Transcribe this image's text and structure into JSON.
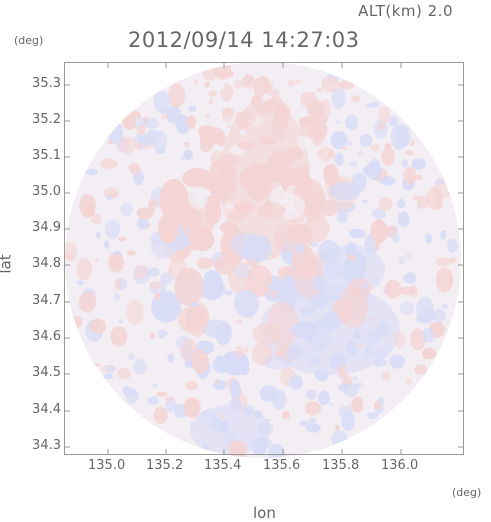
{
  "header": {
    "altitude": "ALT(km) 2.0",
    "timestamp": "2012/09/14 14:27:03"
  },
  "axes": {
    "y_unit": "(deg)",
    "x_unit": "(deg)",
    "y_title": "lat",
    "x_title": "lon",
    "y_ticks": [
      "35.3",
      "35.2",
      "35.1",
      "35.0",
      "34.9",
      "34.8",
      "34.7",
      "34.6",
      "34.5",
      "34.4",
      "34.3"
    ],
    "x_ticks": [
      "135.0",
      "135.2",
      "135.4",
      "135.6",
      "135.8",
      "136.0"
    ]
  },
  "colors": {
    "positive": "#f4d4d4",
    "negative": "#d8dcf6",
    "neutral": "#f3eef3",
    "frame": "#999999"
  }
}
